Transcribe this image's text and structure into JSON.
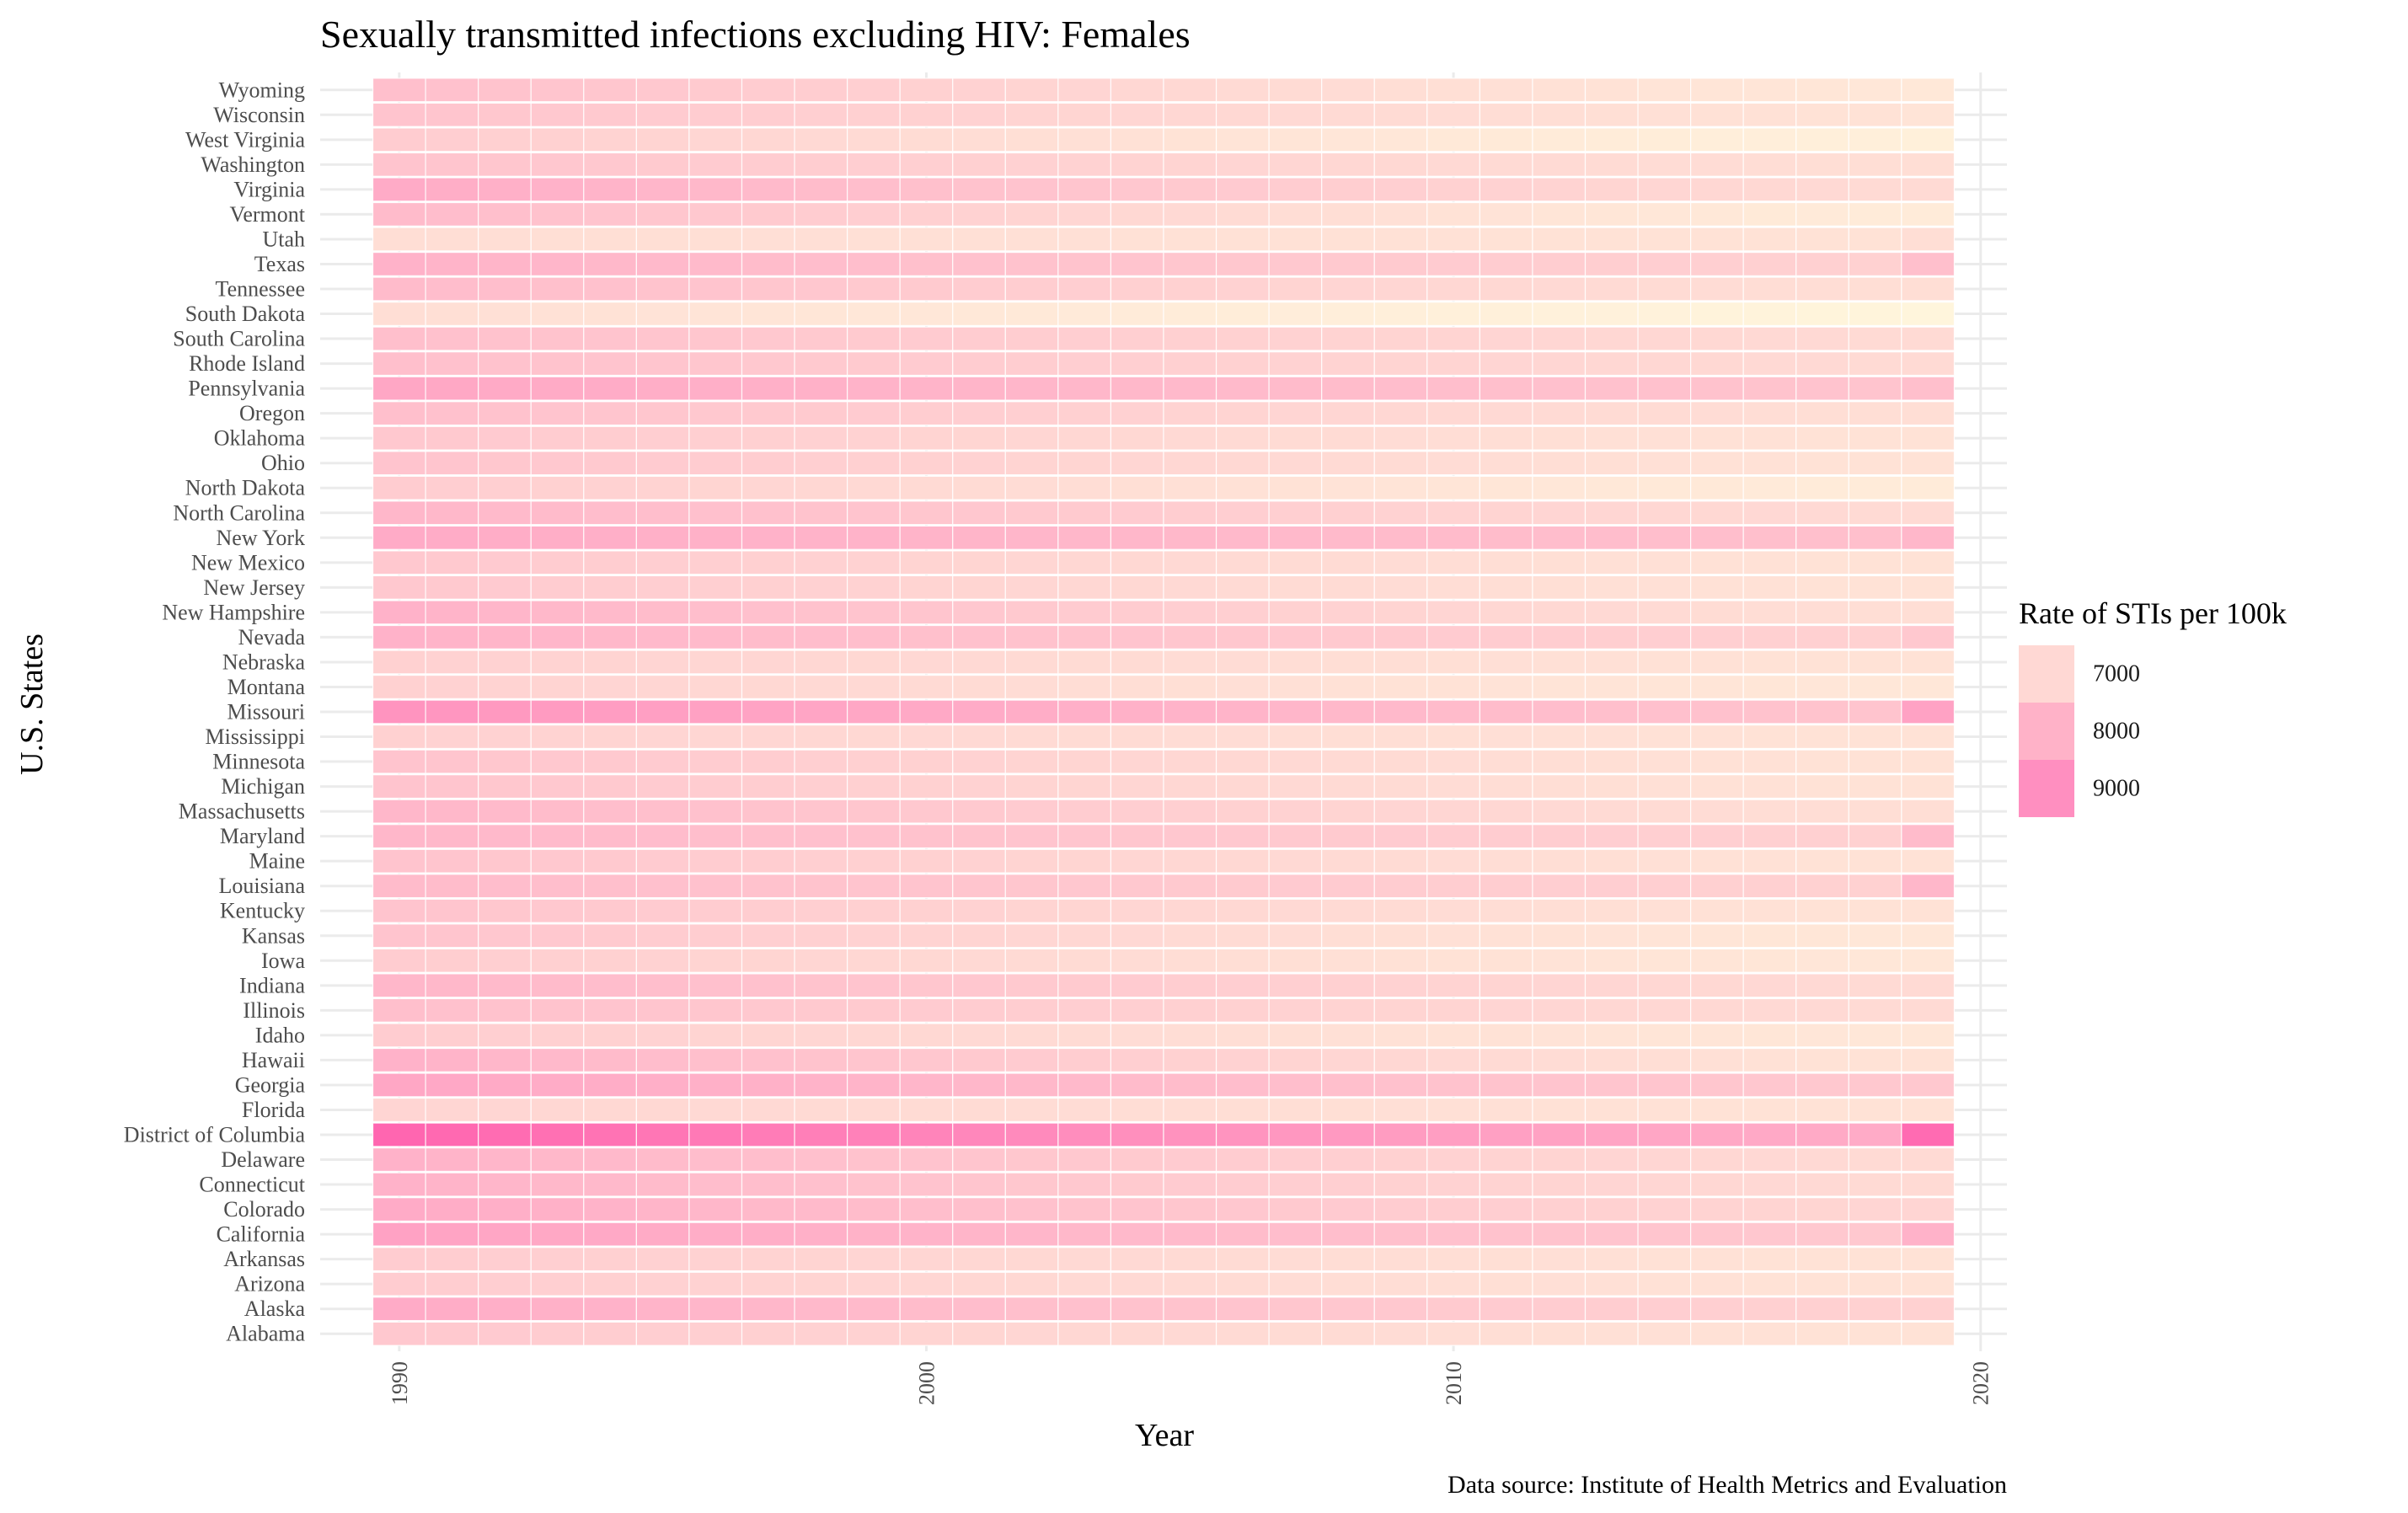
{
  "chart_data": {
    "type": "heatmap",
    "title": "Sexually transmitted infections excluding HIV: Females",
    "xlabel": "Year",
    "ylabel": "U.S. States",
    "caption": "Data source: Institute of Health Metrics and Evaluation",
    "x_ticks": [
      1990,
      2000,
      2010,
      2020
    ],
    "xlim": [
      1988.5,
      2020.5
    ],
    "years": [
      1990,
      1991,
      1992,
      1993,
      1994,
      1995,
      1996,
      1997,
      1998,
      1999,
      2000,
      2001,
      2002,
      2003,
      2004,
      2005,
      2006,
      2007,
      2008,
      2009,
      2010,
      2011,
      2012,
      2013,
      2014,
      2015,
      2016,
      2017,
      2018,
      2019
    ],
    "color_scale": {
      "low": "#FFF6DC",
      "mid": "#FFB0C8",
      "high": "#FF66B0",
      "low_value": 6400,
      "mid_value": 8000,
      "high_value": 9600
    },
    "legend": {
      "title": "Rate of STIs per 100k",
      "position": "right",
      "entries": [
        {
          "label": "7000",
          "color": "#FFD8D4"
        },
        {
          "label": "8000",
          "color": "#FFB2C8"
        },
        {
          "label": "9000",
          "color": "#FF8FC0"
        }
      ]
    },
    "series": [
      {
        "state": "Wyoming",
        "start": 7650,
        "end": 6750,
        "last": 6720
      },
      {
        "state": "Wisconsin",
        "start": 7550,
        "end": 6850,
        "last": 6820
      },
      {
        "state": "West Virginia",
        "start": 7350,
        "end": 6550,
        "last": 6540
      },
      {
        "state": "Washington",
        "start": 7550,
        "end": 6950,
        "last": 6950
      },
      {
        "state": "Virginia",
        "start": 8100,
        "end": 7050,
        "last": 7050
      },
      {
        "state": "Vermont",
        "start": 7750,
        "end": 6650,
        "last": 6650
      },
      {
        "state": "Utah",
        "start": 6950,
        "end": 6850,
        "last": 6950
      },
      {
        "state": "Texas",
        "start": 7950,
        "end": 7250,
        "last": 7650
      },
      {
        "state": "Tennessee",
        "start": 7750,
        "end": 6950,
        "last": 6950
      },
      {
        "state": "South Dakota",
        "start": 6950,
        "end": 6450,
        "last": 6420
      },
      {
        "state": "South Carolina",
        "start": 7650,
        "end": 7050,
        "last": 7050
      },
      {
        "state": "Rhode Island",
        "start": 7650,
        "end": 7050,
        "last": 7050
      },
      {
        "state": "Pennsylvania",
        "start": 8200,
        "end": 7550,
        "last": 7650
      },
      {
        "state": "Oregon",
        "start": 7650,
        "end": 6950,
        "last": 6950
      },
      {
        "state": "Oklahoma",
        "start": 7450,
        "end": 6850,
        "last": 6850
      },
      {
        "state": "Ohio",
        "start": 7550,
        "end": 6850,
        "last": 6850
      },
      {
        "state": "North Dakota",
        "start": 7350,
        "end": 6650,
        "last": 6650
      },
      {
        "state": "North Carolina",
        "start": 7850,
        "end": 7050,
        "last": 7050
      },
      {
        "state": "New York",
        "start": 8100,
        "end": 7650,
        "last": 7850
      },
      {
        "state": "New Mexico",
        "start": 7450,
        "end": 6850,
        "last": 6850
      },
      {
        "state": "New Jersey",
        "start": 7450,
        "end": 6850,
        "last": 6850
      },
      {
        "state": "New Hampshire",
        "start": 7950,
        "end": 6950,
        "last": 6950
      },
      {
        "state": "Nevada",
        "start": 7950,
        "end": 7250,
        "last": 7450
      },
      {
        "state": "Nebraska",
        "start": 7250,
        "end": 6850,
        "last": 6850
      },
      {
        "state": "Montana",
        "start": 7250,
        "end": 6750,
        "last": 6750
      },
      {
        "state": "Missouri",
        "start": 8600,
        "end": 7550,
        "last": 8300
      },
      {
        "state": "Mississippi",
        "start": 7250,
        "end": 6850,
        "last": 6850
      },
      {
        "state": "Minnesota",
        "start": 7550,
        "end": 6850,
        "last": 6850
      },
      {
        "state": "Michigan",
        "start": 7550,
        "end": 6850,
        "last": 6850
      },
      {
        "state": "Massachusetts",
        "start": 7850,
        "end": 6950,
        "last": 6950
      },
      {
        "state": "Maryland",
        "start": 7850,
        "end": 7250,
        "last": 7750
      },
      {
        "state": "Maine",
        "start": 7550,
        "end": 6850,
        "last": 6850
      },
      {
        "state": "Louisiana",
        "start": 7750,
        "end": 7250,
        "last": 7850
      },
      {
        "state": "Kentucky",
        "start": 7550,
        "end": 6850,
        "last": 6850
      },
      {
        "state": "Kansas",
        "start": 7550,
        "end": 6750,
        "last": 6750
      },
      {
        "state": "Iowa",
        "start": 7350,
        "end": 6750,
        "last": 6750
      },
      {
        "state": "Indiana",
        "start": 7850,
        "end": 7050,
        "last": 7050
      },
      {
        "state": "Illinois",
        "start": 7650,
        "end": 7050,
        "last": 7050
      },
      {
        "state": "Idaho",
        "start": 7350,
        "end": 6750,
        "last": 6750
      },
      {
        "state": "Hawaii",
        "start": 7950,
        "end": 6850,
        "last": 6850
      },
      {
        "state": "Georgia",
        "start": 8200,
        "end": 7450,
        "last": 7450
      },
      {
        "state": "Florida",
        "start": 7150,
        "end": 6850,
        "last": 6850
      },
      {
        "state": "District of Columbia",
        "start": 9600,
        "end": 8100,
        "last": 9500
      },
      {
        "state": "Delaware",
        "start": 7950,
        "end": 7050,
        "last": 7050
      },
      {
        "state": "Connecticut",
        "start": 7950,
        "end": 7050,
        "last": 7050
      },
      {
        "state": "Colorado",
        "start": 8100,
        "end": 7150,
        "last": 7150
      },
      {
        "state": "California",
        "start": 8300,
        "end": 7450,
        "last": 7950
      },
      {
        "state": "Arkansas",
        "start": 7350,
        "end": 6850,
        "last": 6850
      },
      {
        "state": "Arizona",
        "start": 7350,
        "end": 6850,
        "last": 6850
      },
      {
        "state": "Alaska",
        "start": 8100,
        "end": 7250,
        "last": 7250
      },
      {
        "state": "Alabama",
        "start": 7450,
        "end": 6850,
        "last": 6850
      }
    ]
  }
}
